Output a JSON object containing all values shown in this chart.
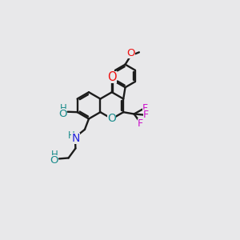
{
  "background_color": "#e8e8ea",
  "bond_color": "#1c1c1c",
  "bond_lw": 1.7,
  "figsize": [
    3.0,
    3.0
  ],
  "dpi": 100,
  "colors": {
    "O_red": "#ee1111",
    "O_teal": "#1a8c8c",
    "N_blue": "#2222dd",
    "F_magenta": "#cc11cc",
    "C": "#1c1c1c",
    "H_teal": "#1a8c8c"
  },
  "fs": 9.2,
  "xlim": [
    0,
    10
  ],
  "ylim": [
    0,
    10
  ]
}
